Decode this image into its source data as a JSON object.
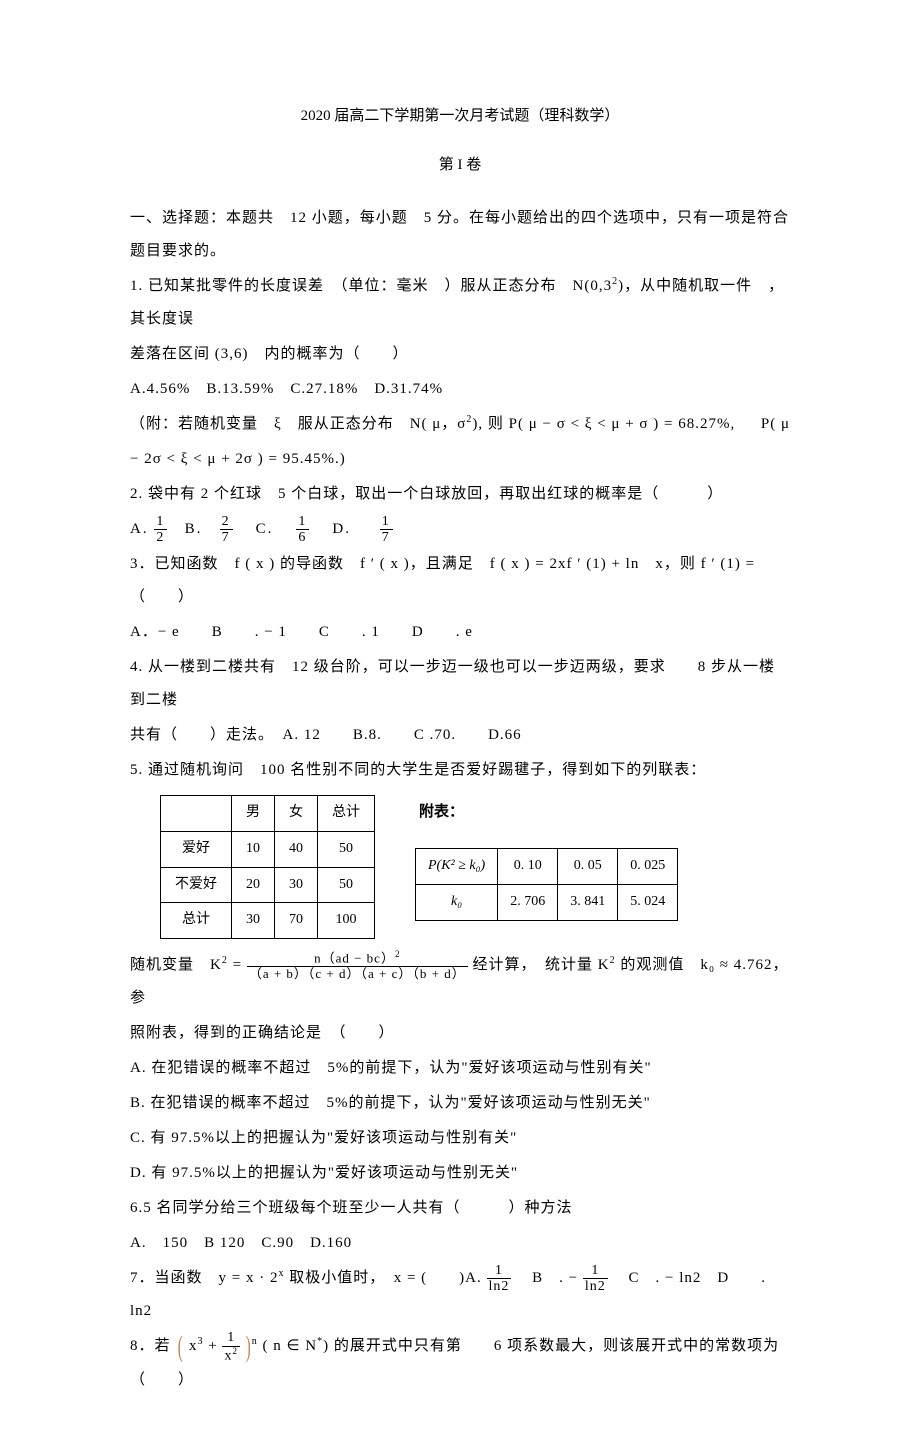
{
  "title": "2020 届高二下学期第一次月考试题（理科数学）",
  "subtitle": "第 I 卷",
  "section_heading": "一、选择题：本题共　12 小题，每小题　5 分。在每小题给出的四个选项中，只有一项是符合题目要求的。",
  "q1": {
    "line1": "1. 已知某批零件的长度误差　（单位：毫米　）服从正态分布　N(0,3",
    "line1b": ")，从中随机取一件　，其长度误",
    "line2": "差落在区间 (3,6)　内的概率为（　　）",
    "opts": "A.4.56%　B.13.59%　C.27.18%　D.31.74%",
    "note1": "（附：若随机变量　ξ　服从正态分布　N( μ，σ",
    "note1b": "), 则 P( μ − σ < ξ < μ + σ ) = 68.27%,",
    "note1c": "P( μ",
    "note2": "− 2σ < ξ < μ + 2σ ) = 95.45%.)"
  },
  "q2": {
    "stem": "2. 袋中有 2 个红球　5 个白球，取出一个白球放回，再取出红球的概率是（　　　）",
    "opts": {
      "A": "A.",
      "A_n": "1",
      "A_d": "2",
      "B": "B.",
      "B_n": "2",
      "B_d": "7",
      "C": "C.",
      "C_n": "1",
      "C_d": "6",
      "D": "D.",
      "D_n": "1",
      "D_d": "7"
    }
  },
  "q3": {
    "stem": "3．已知函数　f ( x ) 的导函数　f ′ ( x )，且满足　f ( x ) = 2xf ′ (1) + ln　x，则 f ′ (1) =（　　）",
    "opts": "A．− e　　B　　. − 1　　C　　. 1　　D　　. e"
  },
  "q4": {
    "line1": "4. 从一楼到二楼共有　12 级台阶，可以一步迈一级也可以一步迈两级，要求　　8 步从一楼到二楼",
    "line2": "共有（　　）走法。　A. 12　　B.8.　　C .70.　　D.66"
  },
  "q5": {
    "stem": "5. 通过随机询问　100 名性别不同的大学生是否爱好踢毽子，得到如下的列联表：",
    "t1": {
      "h": [
        "",
        "男",
        "女",
        "总计"
      ],
      "r1": [
        "爱好",
        "10",
        "40",
        "50"
      ],
      "r2": [
        "不爱好",
        "20",
        "30",
        "50"
      ],
      "r3": [
        "总计",
        "30",
        "70",
        "100"
      ]
    },
    "attach": "附表：",
    "t2": {
      "r1": [
        "P(K² ≥ k₀)",
        "0. 10",
        "0. 05",
        "0. 025"
      ],
      "r2": [
        "k₀",
        "2. 706",
        "3. 841",
        "5. 024"
      ]
    },
    "formula_pre": "随机变量　K",
    "formula_eq": " = ",
    "formula_num": "n（ad − bc）",
    "formula_den": "（a + b）（c + d）（a + c）（b + d）",
    "formula_post": " 经计算，　统计量 K",
    "formula_post2": " 的观测值　k₀ ≈ 4.762，参",
    "line2": "照附表，得到的正确结论是　（　　）",
    "A": "A. 在犯错误的概率不超过　5%的前提下，认为\"爱好该项运动与性别有关\"",
    "B": "B. 在犯错误的概率不超过　5%的前提下，认为\"爱好该项运动与性别无关\"",
    "C": "C. 有 97.5%以上的把握认为\"爱好该项运动与性别有关\"",
    "D": "D. 有 97.5%以上的把握认为\"爱好该项运动与性别无关\""
  },
  "q6": {
    "line1": "6.5 名同学分给三个班级每个班至少一人共有（　　　）种方法",
    "line2": "A.　150　B 120　C.90　D.160"
  },
  "q7": {
    "pre": "7．当函数　y = x · 2",
    "mid": " 取极小值时，　x = (　　)A. ",
    "n1": "1",
    "d1": "ln2",
    "b": "　B　. − ",
    "n2": "1",
    "d2": "ln2",
    "c": "　C　. − ln2　D　　. ln2"
  },
  "q8": {
    "pre": "8．若",
    "x3": "x",
    "plus": " + ",
    "n": "1",
    "d": "x",
    "post1": "( n ∈ N",
    "post2": ") 的展开式中只有第　　6 项系数最大，则该展开式中的常数项为　　　（　　）"
  }
}
